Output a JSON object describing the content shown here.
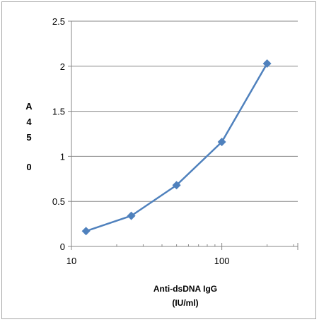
{
  "chart_data": {
    "type": "line",
    "xlabel_lines": [
      "Anti-dsDNA IgG",
      "(IU/ml)"
    ],
    "ylabel_chars": [
      "A",
      "4",
      "5",
      "0"
    ],
    "x_scale": "log",
    "xlim": [
      10,
      320
    ],
    "ylim": [
      0,
      2.5
    ],
    "x_ticks": [
      10,
      100
    ],
    "x_tick_labels": [
      "10",
      "100"
    ],
    "y_ticks": [
      0,
      0.5,
      1,
      1.5,
      2,
      2.5
    ],
    "y_tick_labels": [
      "0",
      "0.5",
      "1",
      "1.5",
      "2",
      "2.5"
    ],
    "grid": "horizontal",
    "marker": "diamond",
    "color": "#4f81bd",
    "series": [
      {
        "x": [
          12.5,
          25,
          50,
          100,
          200
        ],
        "y": [
          0.17,
          0.34,
          0.68,
          1.16,
          2.03
        ]
      }
    ]
  }
}
